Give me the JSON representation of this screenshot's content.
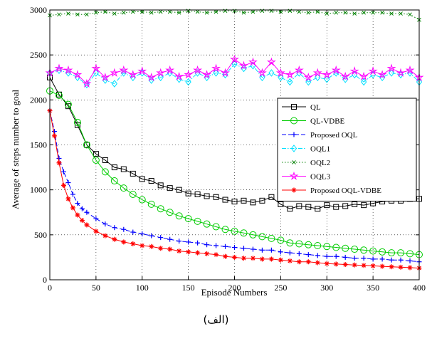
{
  "caption": "(الف)",
  "chart_data": {
    "type": "line",
    "xlabel": "Episode Numbers",
    "ylabel": "Average of steps number to goal",
    "xlim": [
      0,
      400
    ],
    "ylim": [
      0,
      3000
    ],
    "xticks": [
      0,
      50,
      100,
      150,
      200,
      250,
      300,
      350,
      400
    ],
    "yticks": [
      0,
      500,
      1000,
      1500,
      2000,
      2500,
      3000
    ],
    "grid": true,
    "legend_position": "right",
    "series": [
      {
        "name": "QL",
        "color": "#000000",
        "line": "solid",
        "marker": "square",
        "x": [
          0,
          10,
          20,
          30,
          40,
          50,
          60,
          70,
          80,
          90,
          100,
          110,
          120,
          130,
          140,
          150,
          160,
          170,
          180,
          190,
          200,
          210,
          220,
          230,
          240,
          250,
          260,
          270,
          280,
          290,
          300,
          310,
          320,
          330,
          340,
          350,
          360,
          370,
          380,
          390,
          400
        ],
        "y": [
          2250,
          2060,
          1930,
          1720,
          1500,
          1400,
          1330,
          1250,
          1230,
          1180,
          1120,
          1100,
          1050,
          1020,
          1000,
          960,
          950,
          930,
          920,
          890,
          870,
          880,
          860,
          880,
          920,
          840,
          790,
          820,
          810,
          790,
          830,
          810,
          820,
          840,
          830,
          850,
          870,
          880,
          880,
          900,
          900
        ]
      },
      {
        "name": "QL-VDBE",
        "color": "#00cc00",
        "line": "solid",
        "marker": "circle",
        "x": [
          0,
          10,
          20,
          30,
          40,
          50,
          60,
          70,
          80,
          90,
          100,
          110,
          120,
          130,
          140,
          150,
          160,
          170,
          180,
          190,
          200,
          210,
          220,
          230,
          240,
          250,
          260,
          270,
          280,
          290,
          300,
          310,
          320,
          330,
          340,
          350,
          360,
          370,
          380,
          390,
          400
        ],
        "y": [
          2100,
          2050,
          1950,
          1750,
          1500,
          1330,
          1200,
          1100,
          1020,
          950,
          890,
          840,
          790,
          750,
          710,
          680,
          650,
          620,
          590,
          560,
          540,
          520,
          500,
          480,
          460,
          440,
          410,
          400,
          390,
          380,
          370,
          360,
          350,
          340,
          330,
          320,
          310,
          300,
          300,
          290,
          280
        ]
      },
      {
        "name": "Proposed OQL",
        "color": "#0000ff",
        "line": "dashed",
        "marker": "plus",
        "x": [
          0,
          5,
          10,
          15,
          20,
          25,
          30,
          35,
          40,
          50,
          60,
          70,
          80,
          90,
          100,
          110,
          120,
          130,
          140,
          150,
          160,
          170,
          180,
          190,
          200,
          210,
          220,
          230,
          240,
          250,
          260,
          270,
          280,
          290,
          300,
          310,
          320,
          330,
          340,
          350,
          360,
          370,
          380,
          390,
          400
        ],
        "y": [
          1880,
          1650,
          1350,
          1200,
          1080,
          950,
          850,
          790,
          750,
          680,
          620,
          580,
          560,
          530,
          510,
          490,
          470,
          450,
          430,
          420,
          410,
          390,
          380,
          370,
          360,
          350,
          340,
          330,
          330,
          310,
          300,
          290,
          280,
          270,
          260,
          260,
          250,
          240,
          240,
          230,
          230,
          220,
          220,
          210,
          200
        ]
      },
      {
        "name": "OQL1",
        "color": "#00e0ff",
        "line": "dashdot",
        "marker": "diamond",
        "x": [
          0,
          10,
          20,
          30,
          40,
          50,
          60,
          70,
          80,
          90,
          100,
          110,
          120,
          130,
          140,
          150,
          160,
          170,
          180,
          190,
          200,
          210,
          220,
          230,
          240,
          250,
          260,
          270,
          280,
          290,
          300,
          310,
          320,
          330,
          340,
          350,
          360,
          370,
          380,
          390,
          400
        ],
        "y": [
          2300,
          2330,
          2300,
          2250,
          2170,
          2300,
          2220,
          2180,
          2300,
          2250,
          2300,
          2220,
          2250,
          2300,
          2230,
          2200,
          2300,
          2250,
          2300,
          2280,
          2400,
          2350,
          2380,
          2250,
          2300,
          2250,
          2200,
          2300,
          2200,
          2250,
          2230,
          2300,
          2230,
          2280,
          2200,
          2280,
          2250,
          2300,
          2280,
          2300,
          2200
        ]
      },
      {
        "name": "OQL2",
        "color": "#008000",
        "line": "dotted",
        "marker": "x",
        "x": [
          0,
          10,
          20,
          30,
          40,
          50,
          60,
          70,
          80,
          90,
          100,
          110,
          120,
          130,
          140,
          150,
          160,
          170,
          180,
          190,
          200,
          210,
          220,
          230,
          240,
          250,
          260,
          270,
          280,
          290,
          300,
          310,
          320,
          330,
          340,
          350,
          360,
          370,
          380,
          390,
          400
        ],
        "y": [
          2940,
          2950,
          2960,
          2950,
          2950,
          2970,
          2980,
          2960,
          2970,
          2980,
          2980,
          2970,
          2980,
          2980,
          2970,
          2990,
          2980,
          2970,
          2980,
          2990,
          2990,
          2970,
          2980,
          2990,
          2990,
          2980,
          2990,
          2980,
          2970,
          2980,
          2960,
          2970,
          2970,
          2960,
          2970,
          2970,
          2970,
          2960,
          2960,
          2950,
          2890
        ]
      },
      {
        "name": "OQL3",
        "color": "#ff00ff",
        "line": "solid",
        "marker": "star",
        "x": [
          0,
          10,
          20,
          30,
          40,
          50,
          60,
          70,
          80,
          90,
          100,
          110,
          120,
          130,
          140,
          150,
          160,
          170,
          180,
          190,
          200,
          210,
          220,
          230,
          240,
          250,
          260,
          270,
          280,
          290,
          300,
          310,
          320,
          330,
          340,
          350,
          360,
          370,
          380,
          390,
          400
        ],
        "y": [
          2300,
          2350,
          2330,
          2280,
          2180,
          2350,
          2250,
          2300,
          2330,
          2280,
          2320,
          2250,
          2300,
          2330,
          2260,
          2280,
          2330,
          2280,
          2350,
          2300,
          2450,
          2380,
          2420,
          2300,
          2420,
          2300,
          2280,
          2330,
          2250,
          2300,
          2280,
          2330,
          2260,
          2320,
          2260,
          2320,
          2280,
          2350,
          2300,
          2330,
          2250
        ]
      },
      {
        "name": "Proposed OQL-VDBE",
        "color": "#ff0000",
        "line": "solid",
        "marker": "asterisk",
        "x": [
          0,
          5,
          10,
          15,
          20,
          25,
          30,
          35,
          40,
          50,
          60,
          70,
          80,
          90,
          100,
          110,
          120,
          130,
          140,
          150,
          160,
          170,
          180,
          190,
          200,
          210,
          220,
          230,
          240,
          250,
          260,
          270,
          280,
          290,
          300,
          310,
          320,
          330,
          340,
          350,
          360,
          370,
          380,
          390,
          400
        ],
        "y": [
          1880,
          1600,
          1300,
          1050,
          900,
          800,
          720,
          660,
          610,
          540,
          490,
          450,
          420,
          400,
          380,
          370,
          350,
          340,
          320,
          310,
          300,
          290,
          280,
          260,
          250,
          240,
          240,
          230,
          230,
          220,
          210,
          200,
          200,
          190,
          180,
          175,
          170,
          165,
          160,
          155,
          150,
          145,
          140,
          135,
          130
        ]
      }
    ]
  }
}
